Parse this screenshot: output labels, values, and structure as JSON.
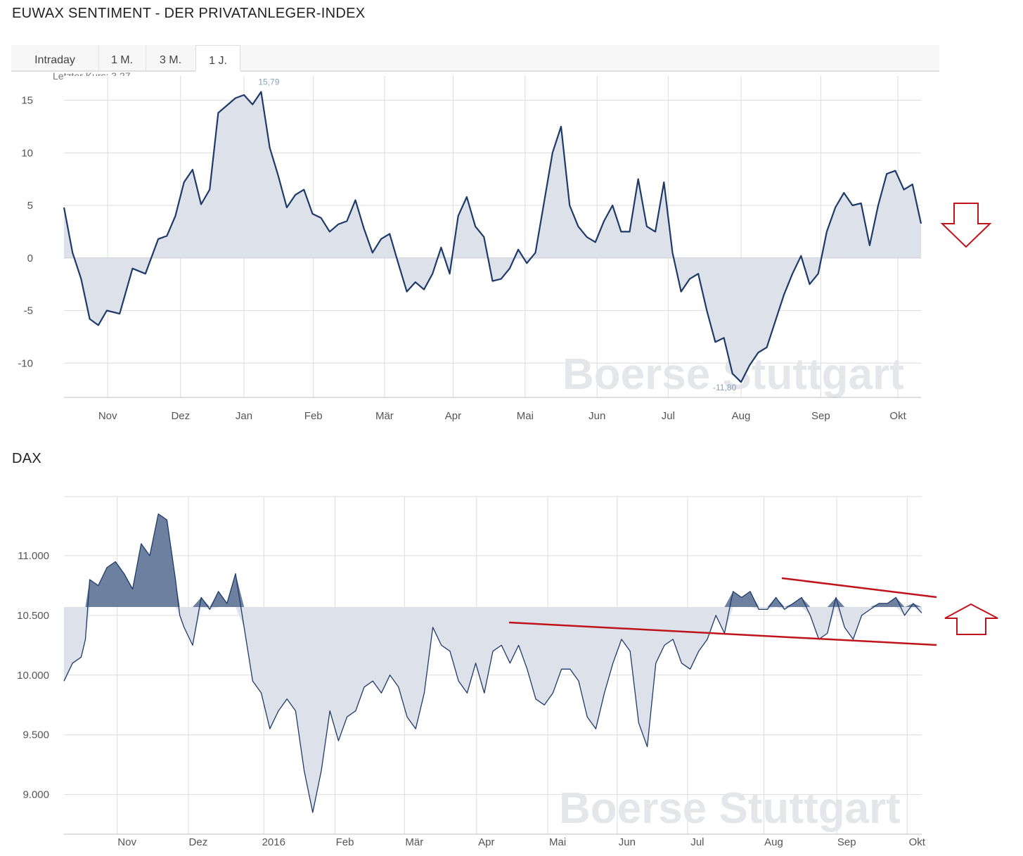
{
  "titles": {
    "sentiment": "EUWAX SENTIMENT - DER PRIVATANLEGER-INDEX",
    "dax": "DAX"
  },
  "tabs": [
    {
      "label": "Intraday",
      "active": false
    },
    {
      "label": "1 M.",
      "active": false
    },
    {
      "label": "3 M.",
      "active": false
    },
    {
      "label": "1 J.",
      "active": true
    }
  ],
  "last_price": "Letzter Kurs: 3,27",
  "watermark": "Boerse Stuttgart",
  "colors": {
    "line": "#1e3a68",
    "fill_light": "#dde2ea",
    "fill_dark": "#6d809f",
    "grid": "#dcdcdc",
    "red": "#c0141c"
  },
  "chart_data": [
    {
      "type": "area",
      "name": "sentiment",
      "xlabels": [
        "Nov",
        "Dez",
        "Jan",
        "Feb",
        "Mär",
        "Apr",
        "Mai",
        "Jun",
        "Jul",
        "Aug",
        "Sep",
        "Okt"
      ],
      "yticks": [
        "15",
        "10",
        "5",
        "0",
        "-5",
        "-10"
      ],
      "ylim": [
        -13.3,
        17
      ],
      "baseline": 0,
      "max_label": "15,79",
      "min_label": "-11,80",
      "x": [
        0.0,
        0.01,
        0.02,
        0.03,
        0.04,
        0.05,
        0.065,
        0.08,
        0.095,
        0.11,
        0.12,
        0.13,
        0.14,
        0.15,
        0.16,
        0.17,
        0.18,
        0.19,
        0.2,
        0.21,
        0.22,
        0.23,
        0.24,
        0.25,
        0.26,
        0.27,
        0.28,
        0.29,
        0.3,
        0.31,
        0.32,
        0.33,
        0.34,
        0.35,
        0.36,
        0.37,
        0.38,
        0.39,
        0.4,
        0.41,
        0.42,
        0.43,
        0.44,
        0.45,
        0.46,
        0.47,
        0.48,
        0.49,
        0.5,
        0.51,
        0.52,
        0.53,
        0.54,
        0.55,
        0.56,
        0.57,
        0.58,
        0.59,
        0.6,
        0.61,
        0.62,
        0.63,
        0.64,
        0.65,
        0.66,
        0.67,
        0.68,
        0.69,
        0.7,
        0.71,
        0.72,
        0.73,
        0.74,
        0.75,
        0.76,
        0.77,
        0.78,
        0.79,
        0.8,
        0.81,
        0.82,
        0.83,
        0.84,
        0.85,
        0.86,
        0.87,
        0.88,
        0.89,
        0.9,
        0.91,
        0.92,
        0.93,
        0.94,
        0.95,
        0.96,
        0.97,
        0.98,
        0.99,
        1.0
      ],
      "values": [
        4.8,
        0.5,
        -2.0,
        -5.8,
        -6.4,
        -5.0,
        -5.3,
        -1.0,
        -1.5,
        1.8,
        2.1,
        4.0,
        7.2,
        8.4,
        5.1,
        6.5,
        13.8,
        14.5,
        15.2,
        15.5,
        14.6,
        15.8,
        10.5,
        7.8,
        4.8,
        6.0,
        6.5,
        4.2,
        3.8,
        2.5,
        3.2,
        3.5,
        5.5,
        2.8,
        0.5,
        1.8,
        2.3,
        -0.5,
        -3.2,
        -2.3,
        -3.0,
        -1.5,
        1.0,
        -1.5,
        4.0,
        5.8,
        3.0,
        2.0,
        -2.2,
        -2.0,
        -1.0,
        0.8,
        -0.5,
        0.5,
        5.2,
        10.0,
        12.5,
        5.0,
        3.0,
        2.0,
        1.5,
        3.5,
        5.0,
        2.5,
        2.5,
        7.5,
        3.0,
        2.5,
        7.2,
        0.5,
        -3.2,
        -2.0,
        -1.5,
        -5.0,
        -8.0,
        -7.6,
        -11.0,
        -11.8,
        -10.2,
        -9.0,
        -8.5,
        -6.0,
        -3.5,
        -1.5,
        0.2,
        -2.5,
        -1.5,
        2.5,
        4.8,
        6.2,
        5.0,
        5.2,
        1.2,
        5.0,
        8.0,
        8.3,
        6.5,
        7.0,
        3.27
      ],
      "month_x": [
        0.051,
        0.136,
        0.21,
        0.291,
        0.374,
        0.454,
        0.538,
        0.622,
        0.705,
        0.79,
        0.883,
        0.973
      ]
    },
    {
      "type": "area",
      "name": "dax",
      "xlabels": [
        "Nov",
        "Dez",
        "2016",
        "Feb",
        "Mär",
        "Apr",
        "Mai",
        "Jun",
        "Jul",
        "Aug",
        "Sep",
        "Okt"
      ],
      "yticks": [
        "11.000",
        "10.500",
        "10.000",
        "9.500",
        "9.000"
      ],
      "ylim": [
        8650,
        11500
      ],
      "baseline": 10570,
      "x": [
        0.0,
        0.01,
        0.02,
        0.025,
        0.03,
        0.04,
        0.05,
        0.06,
        0.07,
        0.08,
        0.09,
        0.1,
        0.11,
        0.12,
        0.13,
        0.135,
        0.14,
        0.15,
        0.16,
        0.17,
        0.18,
        0.19,
        0.2,
        0.21,
        0.22,
        0.23,
        0.24,
        0.25,
        0.26,
        0.27,
        0.28,
        0.29,
        0.3,
        0.31,
        0.32,
        0.33,
        0.34,
        0.35,
        0.36,
        0.37,
        0.38,
        0.39,
        0.4,
        0.41,
        0.42,
        0.43,
        0.44,
        0.45,
        0.46,
        0.47,
        0.48,
        0.49,
        0.5,
        0.51,
        0.52,
        0.53,
        0.54,
        0.55,
        0.56,
        0.57,
        0.58,
        0.59,
        0.6,
        0.61,
        0.62,
        0.63,
        0.64,
        0.65,
        0.66,
        0.67,
        0.68,
        0.69,
        0.7,
        0.71,
        0.72,
        0.73,
        0.74,
        0.75,
        0.76,
        0.77,
        0.78,
        0.79,
        0.8,
        0.81,
        0.82,
        0.83,
        0.84,
        0.85,
        0.86,
        0.87,
        0.88,
        0.89,
        0.9,
        0.91,
        0.92,
        0.93,
        0.94,
        0.95,
        0.96,
        0.97,
        0.98,
        0.99,
        1.0
      ],
      "values": [
        9950,
        10100,
        10150,
        10300,
        10800,
        10750,
        10900,
        10950,
        10850,
        10720,
        11100,
        11000,
        11350,
        11300,
        10800,
        10500,
        10400,
        10250,
        10650,
        10550,
        10700,
        10600,
        10850,
        10400,
        9950,
        9850,
        9550,
        9700,
        9800,
        9700,
        9200,
        8850,
        9200,
        9700,
        9450,
        9650,
        9700,
        9900,
        9950,
        9850,
        10000,
        9900,
        9650,
        9550,
        9850,
        10400,
        10250,
        10200,
        9950,
        9850,
        10100,
        9850,
        10200,
        10250,
        10100,
        10250,
        10050,
        9800,
        9750,
        9850,
        10050,
        10050,
        9950,
        9650,
        9550,
        9850,
        10100,
        10300,
        10200,
        9600,
        9400,
        10100,
        10250,
        10300,
        10100,
        10050,
        10200,
        10300,
        10500,
        10350,
        10700,
        10650,
        10700,
        10550,
        10550,
        10650,
        10550,
        10600,
        10650,
        10500,
        10300,
        10350,
        10650,
        10400,
        10300,
        10500,
        10550,
        10600,
        10600,
        10650,
        10500,
        10600,
        10520
      ],
      "month_x": [
        0.062,
        0.145,
        0.233,
        0.316,
        0.397,
        0.481,
        0.564,
        0.645,
        0.727,
        0.816,
        0.901,
        0.983
      ]
    }
  ],
  "annotations": {
    "arrow_down": "red-down-arrow",
    "arrow_up": "red-up-arrow",
    "trend_lines": "red-trend-lines"
  }
}
